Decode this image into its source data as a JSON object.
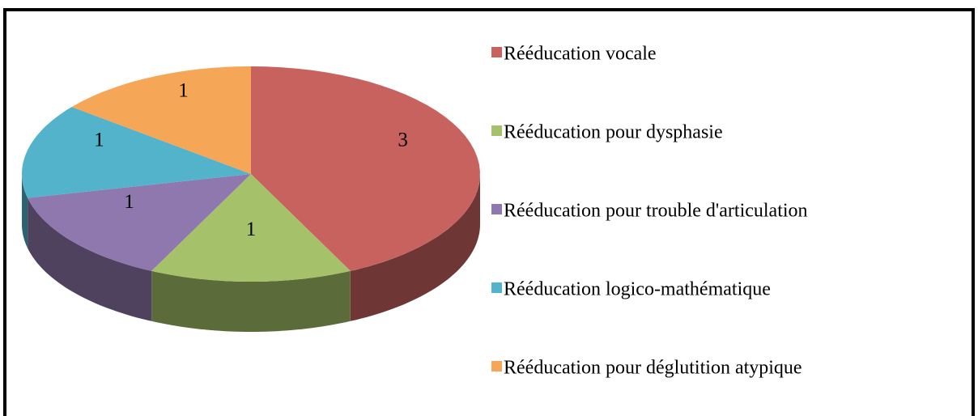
{
  "chart_data": {
    "type": "pie",
    "categories": [
      "Rééducation vocale",
      "Rééducation pour dysphasie",
      "Rééducation pour trouble d'articulation",
      "Rééducation logico-mathématique",
      "Rééducation pour déglutition atypique"
    ],
    "values": [
      3,
      1,
      1,
      1,
      1
    ],
    "colors": [
      "#c8625e",
      "#a5c26a",
      "#8f78ad",
      "#52b3cb",
      "#f6a657"
    ],
    "legend": "right"
  }
}
